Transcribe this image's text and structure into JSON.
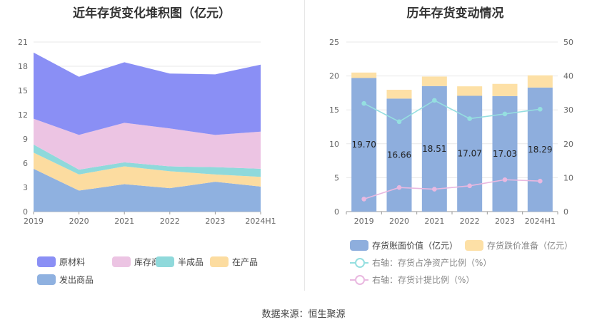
{
  "left": {
    "title": "近年存货变化堆积图（亿元）"
  },
  "right": {
    "title": "历年存货变动情况"
  },
  "source": "数据来源：恒生聚源",
  "chart_data": [
    {
      "type": "area",
      "stacked": true,
      "title": "近年存货变化堆积图（亿元）",
      "categories": [
        "2019",
        "2020",
        "2021",
        "2022",
        "2023",
        "2024H1"
      ],
      "ylim": [
        0,
        21
      ],
      "yticks": [
        0,
        3,
        6,
        9,
        12,
        15,
        18,
        21
      ],
      "series": [
        {
          "name": "发出商品",
          "color": "#8fb1e0",
          "values": [
            5.3,
            2.6,
            3.4,
            2.9,
            3.7,
            3.1
          ]
        },
        {
          "name": "在产品",
          "color": "#fcdca0",
          "values": [
            2.0,
            2.0,
            2.2,
            2.1,
            0.9,
            1.2
          ]
        },
        {
          "name": "半成品",
          "color": "#8fd9db",
          "values": [
            1.0,
            0.6,
            0.5,
            0.6,
            0.9,
            1.0
          ]
        },
        {
          "name": "库存商品",
          "color": "#ecc4e3",
          "values": [
            3.2,
            4.3,
            4.9,
            4.7,
            4.0,
            4.6
          ]
        },
        {
          "name": "原材料",
          "color": "#8a8ff5",
          "values": [
            8.2,
            7.2,
            7.5,
            6.8,
            7.5,
            8.3
          ]
        }
      ],
      "legend_order": [
        "原材料",
        "库存商品",
        "半成品",
        "在产品",
        "发出商品"
      ],
      "legend_position": "bottom"
    },
    {
      "type": "bar",
      "title": "历年存货变动情况",
      "categories": [
        "2019",
        "2020",
        "2021",
        "2022",
        "2023",
        "2024H1"
      ],
      "ylim": [
        0,
        25
      ],
      "yticks": [
        0,
        5,
        10,
        15,
        20,
        25
      ],
      "y2lim": [
        0,
        50
      ],
      "y2ticks": [
        0,
        10,
        20,
        30,
        40,
        50
      ],
      "series": [
        {
          "name": "存货账面价值（亿元）",
          "color": "#8eaedd",
          "values": [
            19.7,
            16.66,
            18.51,
            17.07,
            17.03,
            18.29
          ],
          "data_labels": [
            "19.70",
            "16.66",
            "18.51",
            "17.07",
            "17.03",
            "18.29"
          ]
        },
        {
          "name": "存货跌价准备（亿元）",
          "color": "#fde0a6",
          "values": [
            0.8,
            1.3,
            1.4,
            1.4,
            1.8,
            1.8
          ]
        },
        {
          "name": "右轴：存货占净资产比例（%）",
          "type": "line",
          "axis": "right",
          "color": "#95dfe0",
          "values": [
            31.9,
            26.5,
            32.8,
            27.4,
            28.8,
            30.2
          ]
        },
        {
          "name": "右轴：存货计提比例（%）",
          "type": "line",
          "axis": "right",
          "color": "#e9b8e0",
          "values": [
            3.7,
            7.1,
            6.6,
            7.6,
            9.4,
            9.0
          ]
        }
      ],
      "legend_position": "bottom"
    }
  ]
}
